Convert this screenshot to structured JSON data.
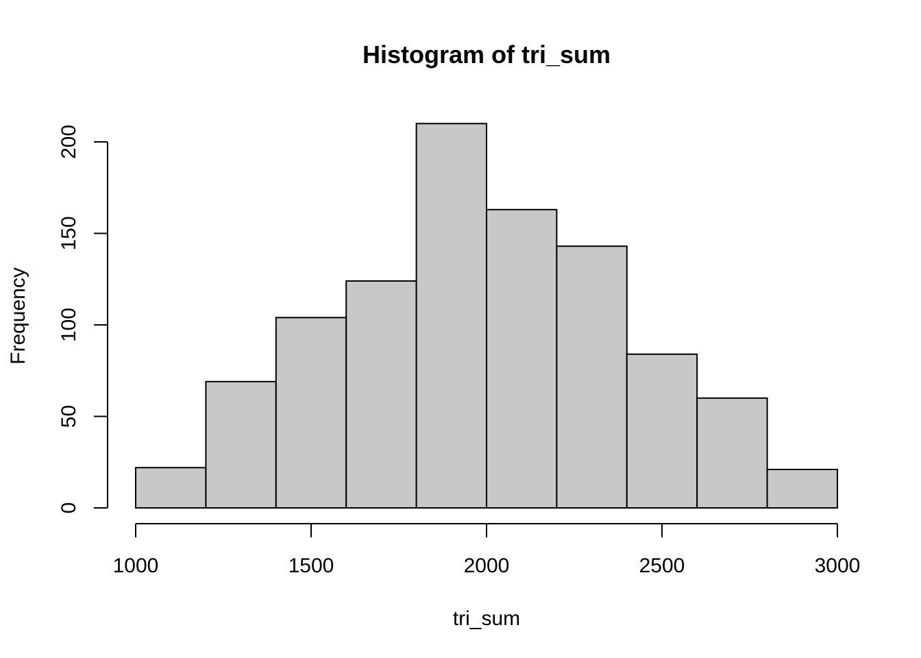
{
  "chart_data": {
    "type": "bar",
    "title": "Histogram of tri_sum",
    "xlabel": "tri_sum",
    "ylabel": "Frequency",
    "bins": [
      {
        "start": 1000,
        "end": 1200,
        "count": 22
      },
      {
        "start": 1200,
        "end": 1400,
        "count": 69
      },
      {
        "start": 1400,
        "end": 1600,
        "count": 104
      },
      {
        "start": 1600,
        "end": 1800,
        "count": 124
      },
      {
        "start": 1800,
        "end": 2000,
        "count": 210
      },
      {
        "start": 2000,
        "end": 2200,
        "count": 163
      },
      {
        "start": 2200,
        "end": 2400,
        "count": 143
      },
      {
        "start": 2400,
        "end": 2600,
        "count": 84
      },
      {
        "start": 2600,
        "end": 2800,
        "count": 60
      },
      {
        "start": 2800,
        "end": 3000,
        "count": 21
      }
    ],
    "xlim": [
      1000,
      3000
    ],
    "ylim": [
      0,
      200
    ],
    "x_ticks": [
      1000,
      1500,
      2000,
      2500,
      3000
    ],
    "y_ticks": [
      0,
      50,
      100,
      150,
      200
    ],
    "colors": {
      "bar_fill": "#c8c8c8",
      "bar_stroke": "#000000"
    },
    "grid": false
  }
}
